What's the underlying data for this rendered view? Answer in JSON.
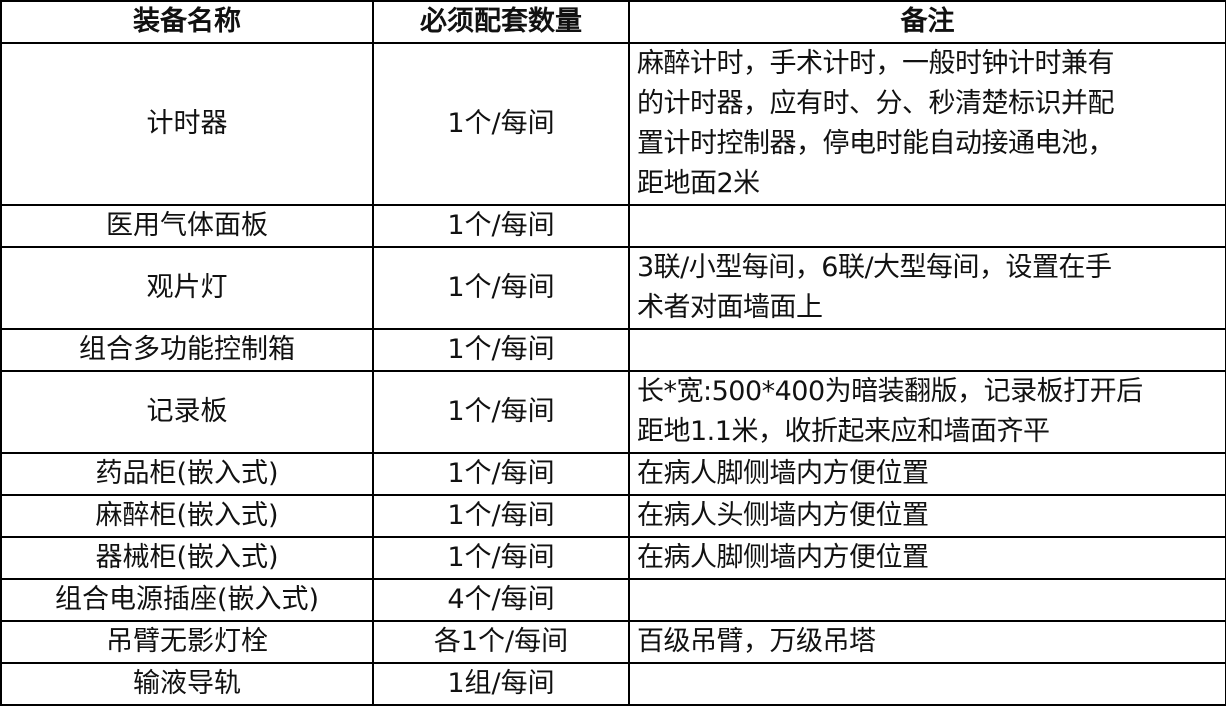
{
  "headers": [
    "装备名称",
    "必须配套数量",
    "备注"
  ],
  "rows": [
    {
      "name": "计时器",
      "qty": "1个/每间",
      "notes": [
        "麻醉计时，手术计时，一般时钟计时兼有",
        "的计时器，应有时、分、秒清楚标识并配",
        "置计时控制器，停电时能自动接通电池，",
        "距地面2米"
      ]
    },
    {
      "name": "医用气体面板",
      "qty": "1个/每间",
      "notes": []
    },
    {
      "name": "观片灯",
      "qty": "1个/每间",
      "notes": [
        "3联/小型每间，6联/大型每间，设置在手",
        "术者对面墙面上"
      ]
    },
    {
      "name": "组合多功能控制箱",
      "qty": "1个/每间",
      "notes": []
    },
    {
      "name": "记录板",
      "qty": "1个/每间",
      "notes": [
        "长*宽:500*400为暗装翻版，记录板打开后",
        "距地1.1米，收折起来应和墙面齐平"
      ]
    },
    {
      "name": "药品柜(嵌入式)",
      "qty": "1个/每间",
      "notes": [
        "在病人脚侧墙内方便位置"
      ]
    },
    {
      "name": "麻醉柜(嵌入式)",
      "qty": "1个/每间",
      "notes": [
        "在病人头侧墙内方便位置"
      ]
    },
    {
      "name": "器械柜(嵌入式)",
      "qty": "1个/每间",
      "notes": [
        "在病人脚侧墙内方便位置"
      ]
    },
    {
      "name": "组合电源插座(嵌入式)",
      "qty": "4个/每间",
      "notes": []
    },
    {
      "name": "吊臂无影灯栓",
      "qty": "各1个/每间",
      "notes": [
        "百级吊臂，万级吊塔"
      ]
    },
    {
      "name": "输液导轨",
      "qty": "1组/每间",
      "notes": []
    }
  ]
}
